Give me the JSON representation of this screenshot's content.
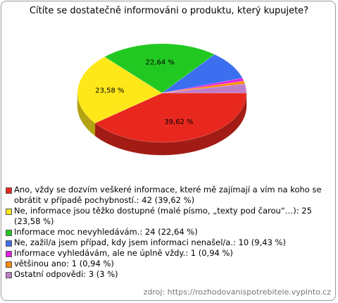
{
  "chart_data": {
    "type": "pie3d",
    "title": "Cítíte se dostatečně informováni o produktu, který kupujete?",
    "categories": [
      "Ano, vždy se dozvím veškeré informace, které mě zajímají a vím na koho se obrátit v případě pochybností.: 42 (39,62 %)",
      "Ne, informace jsou těžko dostupné (malé písmo, „texty pod čarou“…): 25 (23,58 %)",
      "Informace moc nevyhledávám.: 24 (22,64 %)",
      "Ne, zažil/a jsem případ, kdy jsem informaci nenašel/a.: 10 (9,43 %)",
      "Informace vyhledávám, ale ne úplně vždy.: 1 (0,94 %)",
      "většinou ano: 1 (0,94 %)",
      "Ostatní odpovědi: 3 (3 %)"
    ],
    "values": [
      39.62,
      23.58,
      22.64,
      9.43,
      0.94,
      0.94,
      3
    ],
    "value_labels": [
      "39,62 %",
      "23,58 %",
      "22,64 %",
      null,
      null,
      null,
      null
    ],
    "colors": [
      "#e8281e",
      "#ffe81a",
      "#22c822",
      "#3c6ef0",
      "#e022e0",
      "#ff8c00",
      "#c07ec8"
    ],
    "source": "zdroj: https://rozhodovanispotrebitele.vyplnto.cz"
  }
}
